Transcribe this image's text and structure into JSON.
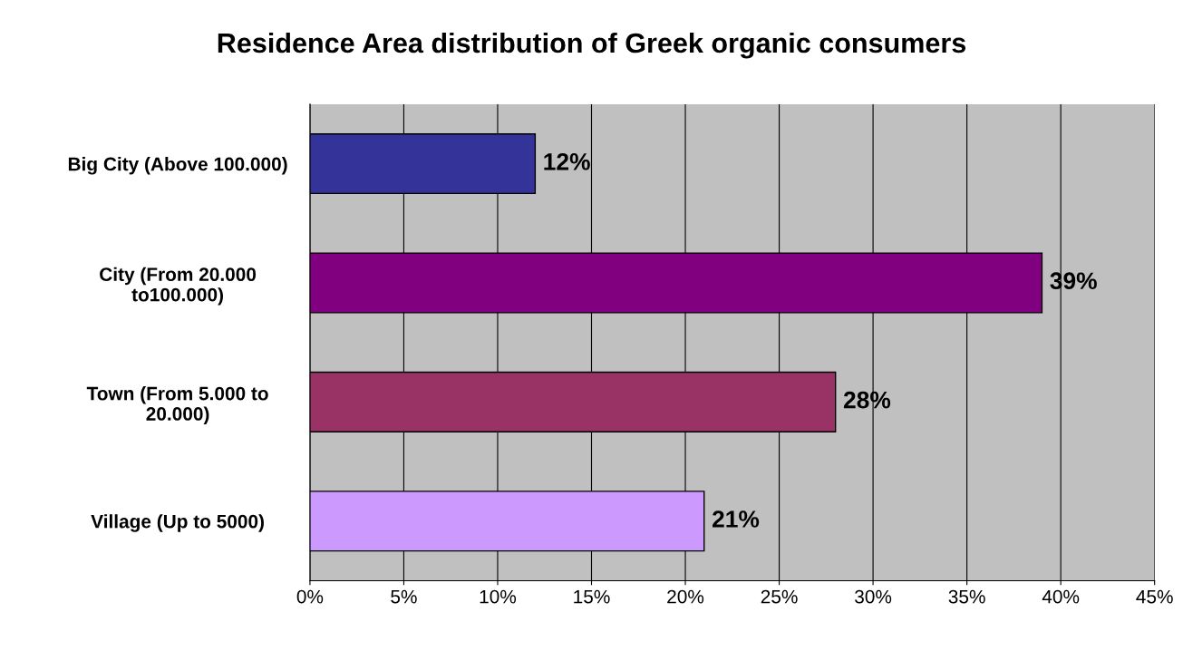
{
  "chart_data": {
    "type": "bar",
    "orientation": "horizontal",
    "title": "Residence Area distribution of Greek organic consumers",
    "categories": [
      "Big City (Above 100.000)",
      "City (From 20.000\nto100.000)",
      "Town (From 5.000 to\n20.000)",
      "Village (Up to 5000)"
    ],
    "values": [
      12,
      39,
      28,
      21
    ],
    "colors": [
      "#333399",
      "#800080",
      "#993366",
      "#cc99ff"
    ],
    "value_labels": [
      "12%",
      "39%",
      "28%",
      "21%"
    ],
    "xlim": [
      0,
      45
    ],
    "xticks": [
      {
        "value": 0,
        "label": "0%"
      },
      {
        "value": 5,
        "label": "5%"
      },
      {
        "value": 10,
        "label": "10%"
      },
      {
        "value": 15,
        "label": "15%"
      },
      {
        "value": 20,
        "label": "20%"
      },
      {
        "value": 25,
        "label": "25%"
      },
      {
        "value": 30,
        "label": "30%"
      },
      {
        "value": 35,
        "label": "35%"
      },
      {
        "value": 40,
        "label": "40%"
      },
      {
        "value": 45,
        "label": "45%"
      }
    ],
    "grid": "x",
    "legend": false
  }
}
